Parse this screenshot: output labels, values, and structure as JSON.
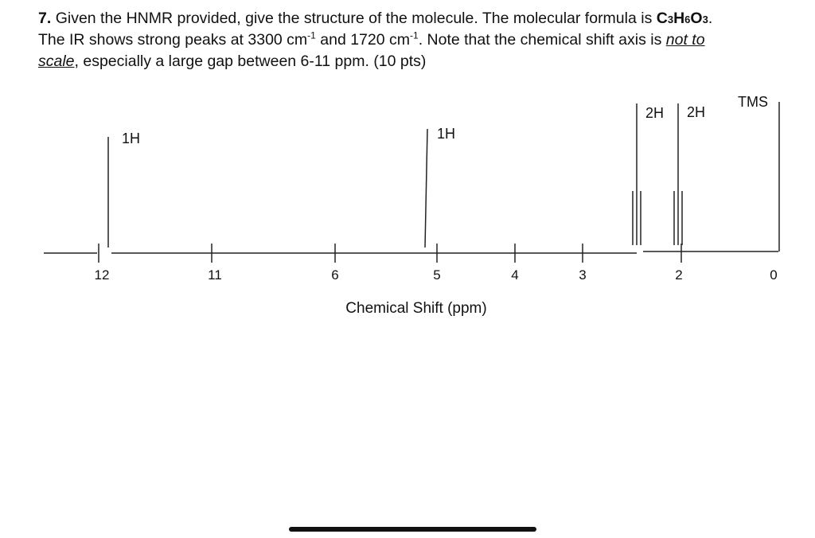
{
  "question": {
    "number": "7.",
    "s1": "Given the HNMR provided, give the structure of the molecule.  The molecular formula is ",
    "formula": {
      "c": "C",
      "c_sub": "3",
      "h": "H",
      "h_sub": "6",
      "o": "O",
      "o_sub": "3",
      "end": "."
    },
    "s2": "The IR shows strong peaks at 3300 cm",
    "exp1": "-1",
    "s3": " and 1720 cm",
    "exp2": "-1",
    "s4": ".  Note that the chemical shift axis is ",
    "u1": "not to",
    "u2": "scale",
    "s5": ", especially a large gap between 6-11 ppm.   (10 pts)"
  },
  "chart_data": {
    "type": "nmr_spectrum",
    "xlabel": "Chemical Shift (ppm)",
    "ticks": [
      "12",
      "11",
      "6",
      "5",
      "4",
      "3",
      "2",
      "0"
    ],
    "axis_note": "not to scale; large gap between 6-11 ppm",
    "peaks": [
      {
        "shift": 11.9,
        "integration": "1H",
        "multiplicity": "singlet"
      },
      {
        "shift": 5.1,
        "integration": "1H",
        "multiplicity": "singlet"
      },
      {
        "shift": 2.5,
        "integration": "2H",
        "multiplicity": "triplet"
      },
      {
        "shift": 1.9,
        "integration": "2H",
        "multiplicity": "triplet"
      },
      {
        "shift": 0.0,
        "integration": "TMS",
        "multiplicity": "singlet"
      }
    ]
  }
}
